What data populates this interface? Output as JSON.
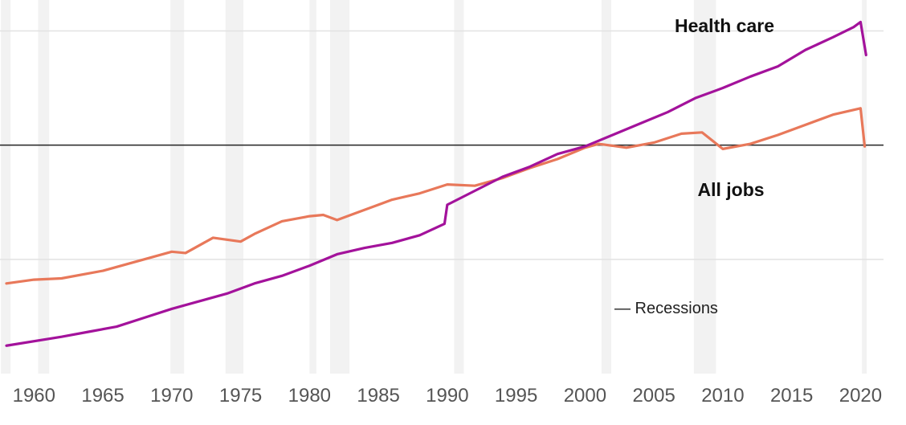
{
  "chart_data": {
    "type": "line",
    "title": "",
    "xlabel": "",
    "ylabel": "",
    "xlim": [
      1958,
      2020.5
    ],
    "ylim": [
      -1.8,
      1.08
    ],
    "x_ticks": [
      "1960",
      "1965",
      "1970",
      "1975",
      "1980",
      "1985",
      "1990",
      "1995",
      "2000",
      "2005",
      "2010",
      "2015",
      "2020"
    ],
    "gridlines": [
      0.9,
      -0.9
    ],
    "baseline": 0,
    "recessions": [
      [
        1957.6,
        1958.3
      ],
      [
        1960.3,
        1961.1
      ],
      [
        1969.9,
        1970.9
      ],
      [
        1973.9,
        1975.2
      ],
      [
        1980.0,
        1980.5
      ],
      [
        1981.5,
        1982.9
      ],
      [
        1990.5,
        1991.2
      ],
      [
        2001.2,
        2001.9
      ],
      [
        2007.9,
        2009.5
      ],
      [
        2020.1,
        2020.3
      ]
    ],
    "legend": {
      "recessions_label": "— Recessions"
    },
    "series": [
      {
        "name": "Health care",
        "label": "Health care",
        "color": "#a3129b",
        "x": [
          1958,
          1962,
          1964,
          1966,
          1968,
          1970,
          1972,
          1974,
          1976,
          1978,
          1980,
          1982,
          1984,
          1986,
          1988,
          1989.8,
          1990,
          1992,
          1994,
          1996,
          1998,
          2000,
          2002,
          2004,
          2006,
          2008,
          2010,
          2012,
          2014,
          2016,
          2018,
          2019.5,
          2020,
          2020.4
        ],
        "values": [
          -1.58,
          -1.51,
          -1.47,
          -1.43,
          -1.36,
          -1.29,
          -1.23,
          -1.17,
          -1.09,
          -1.03,
          -0.95,
          -0.86,
          -0.81,
          -0.77,
          -0.71,
          -0.62,
          -0.47,
          -0.36,
          -0.25,
          -0.17,
          -0.07,
          -0.01,
          0.08,
          0.17,
          0.26,
          0.37,
          0.45,
          0.54,
          0.62,
          0.75,
          0.85,
          0.93,
          0.97,
          0.71
        ]
      },
      {
        "name": "All jobs",
        "label": "All jobs",
        "color": "#e8785a",
        "x": [
          1958,
          1960,
          1962,
          1965,
          1970,
          1971,
          1973,
          1975,
          1976,
          1978,
          1980,
          1981,
          1982,
          1983,
          1986,
          1988,
          1990,
          1992,
          1994,
          1996,
          1998,
          2000,
          2001,
          2003,
          2005,
          2007,
          2008.5,
          2010,
          2012,
          2014,
          2016,
          2018,
          2020,
          2020.3
        ],
        "values": [
          -1.09,
          -1.06,
          -1.05,
          -0.99,
          -0.84,
          -0.85,
          -0.73,
          -0.76,
          -0.7,
          -0.6,
          -0.56,
          -0.55,
          -0.59,
          -0.55,
          -0.43,
          -0.38,
          -0.31,
          -0.32,
          -0.26,
          -0.18,
          -0.11,
          -0.02,
          0.01,
          -0.02,
          0.02,
          0.09,
          0.1,
          -0.03,
          0.01,
          0.08,
          0.16,
          0.24,
          0.29,
          -0.01
        ]
      }
    ]
  }
}
